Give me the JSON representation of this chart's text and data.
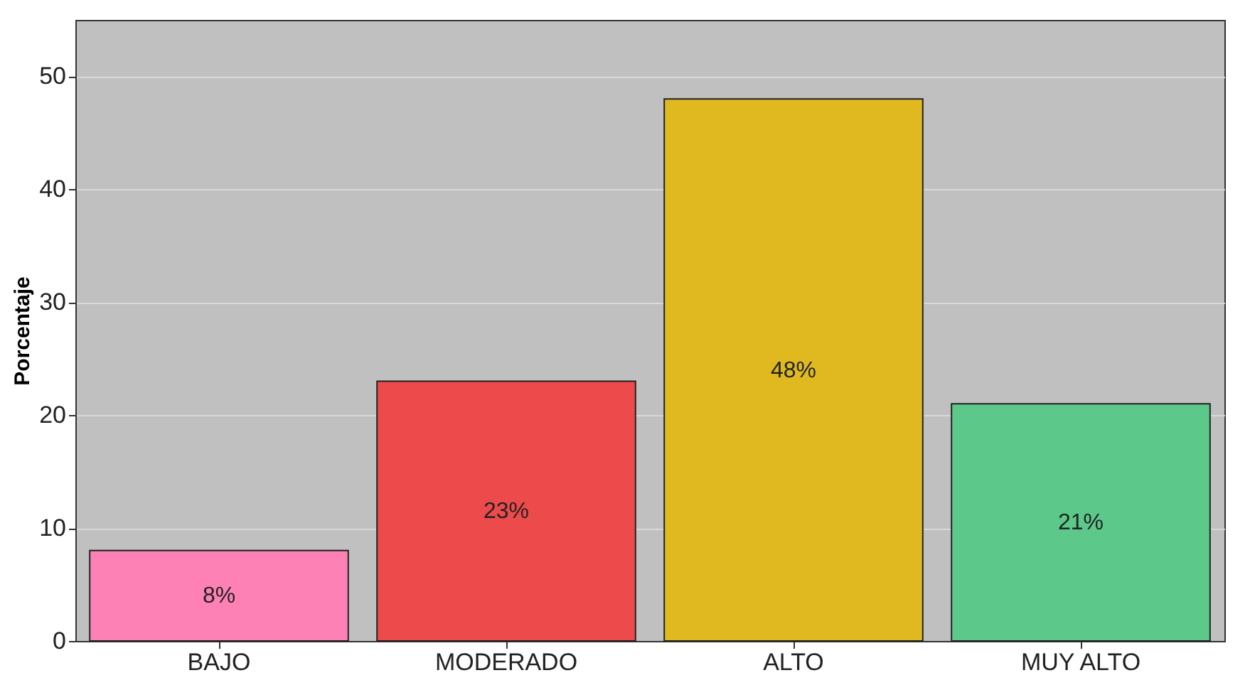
{
  "chart_data": {
    "type": "bar",
    "ylabel": "Porcentaje",
    "categories": [
      "BAJO",
      "MODERADO",
      "ALTO",
      "MUY ALTO"
    ],
    "values": [
      8,
      23,
      48,
      21
    ],
    "colors": [
      "#fd81b5",
      "#ed4a4b",
      "#e0b920",
      "#5cc98a"
    ],
    "value_labels": [
      "8%",
      "23%",
      "48%",
      "21%"
    ],
    "ylim": [
      0,
      55
    ],
    "yticks": [
      0,
      10,
      20,
      30,
      40,
      50
    ],
    "grid": "y"
  }
}
